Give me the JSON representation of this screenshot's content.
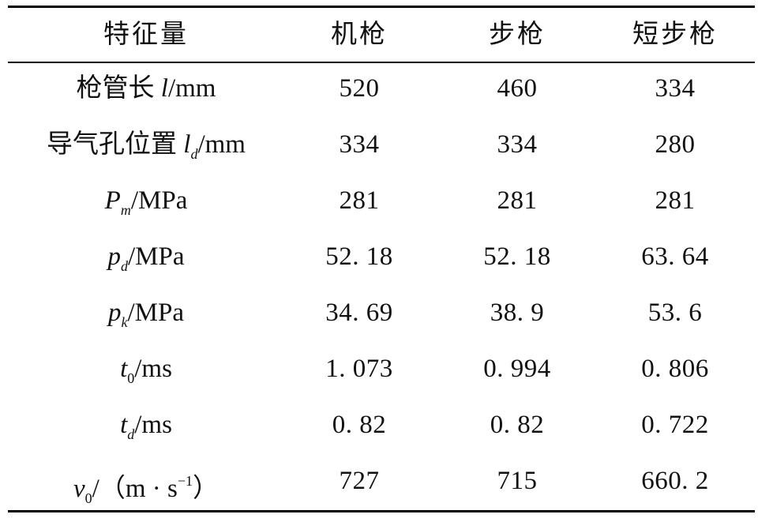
{
  "table": {
    "header": [
      "特征量",
      "机枪",
      "步枪",
      "短步枪"
    ],
    "rows": [
      {
        "label": [
          {
            "text": "枪管长 "
          },
          {
            "text": "l",
            "italic": true
          },
          {
            "text": "/mm"
          }
        ],
        "cells": [
          "520",
          "460",
          "334"
        ]
      },
      {
        "label": [
          {
            "text": "导气孔位置 "
          },
          {
            "text": "l",
            "italic": true
          },
          {
            "text": "d",
            "sub": true,
            "italic": true
          },
          {
            "text": "/mm"
          }
        ],
        "cells": [
          "334",
          "334",
          "280"
        ]
      },
      {
        "label": [
          {
            "text": "P",
            "italic": true
          },
          {
            "text": "m",
            "sub": true,
            "italic": true
          },
          {
            "text": "/MPa"
          }
        ],
        "cells": [
          "281",
          "281",
          "281"
        ]
      },
      {
        "label": [
          {
            "text": "p",
            "italic": true
          },
          {
            "text": "d",
            "sub": true,
            "italic": true
          },
          {
            "text": "/MPa"
          }
        ],
        "cells": [
          "52. 18",
          "52. 18",
          "63. 64"
        ]
      },
      {
        "label": [
          {
            "text": "p",
            "italic": true
          },
          {
            "text": "k",
            "sub": true,
            "italic": true
          },
          {
            "text": "/MPa"
          }
        ],
        "cells": [
          "34. 69",
          "38. 9",
          "53. 6"
        ]
      },
      {
        "label": [
          {
            "text": "t",
            "italic": true
          },
          {
            "text": "0",
            "sub": true
          },
          {
            "text": "/ms"
          }
        ],
        "cells": [
          "1. 073",
          "0. 994",
          "0. 806"
        ]
      },
      {
        "label": [
          {
            "text": "t",
            "italic": true
          },
          {
            "text": "d",
            "sub": true,
            "italic": true
          },
          {
            "text": "/ms"
          }
        ],
        "cells": [
          "0. 82",
          "0. 82",
          "0. 722"
        ]
      },
      {
        "label": [
          {
            "text": "v",
            "italic": true
          },
          {
            "text": "0",
            "sub": true
          },
          {
            "text": "/（m · s"
          },
          {
            "text": "−1",
            "sup": true
          },
          {
            "text": "）"
          }
        ],
        "cells": [
          "727",
          "715",
          "660. 2"
        ]
      }
    ]
  }
}
